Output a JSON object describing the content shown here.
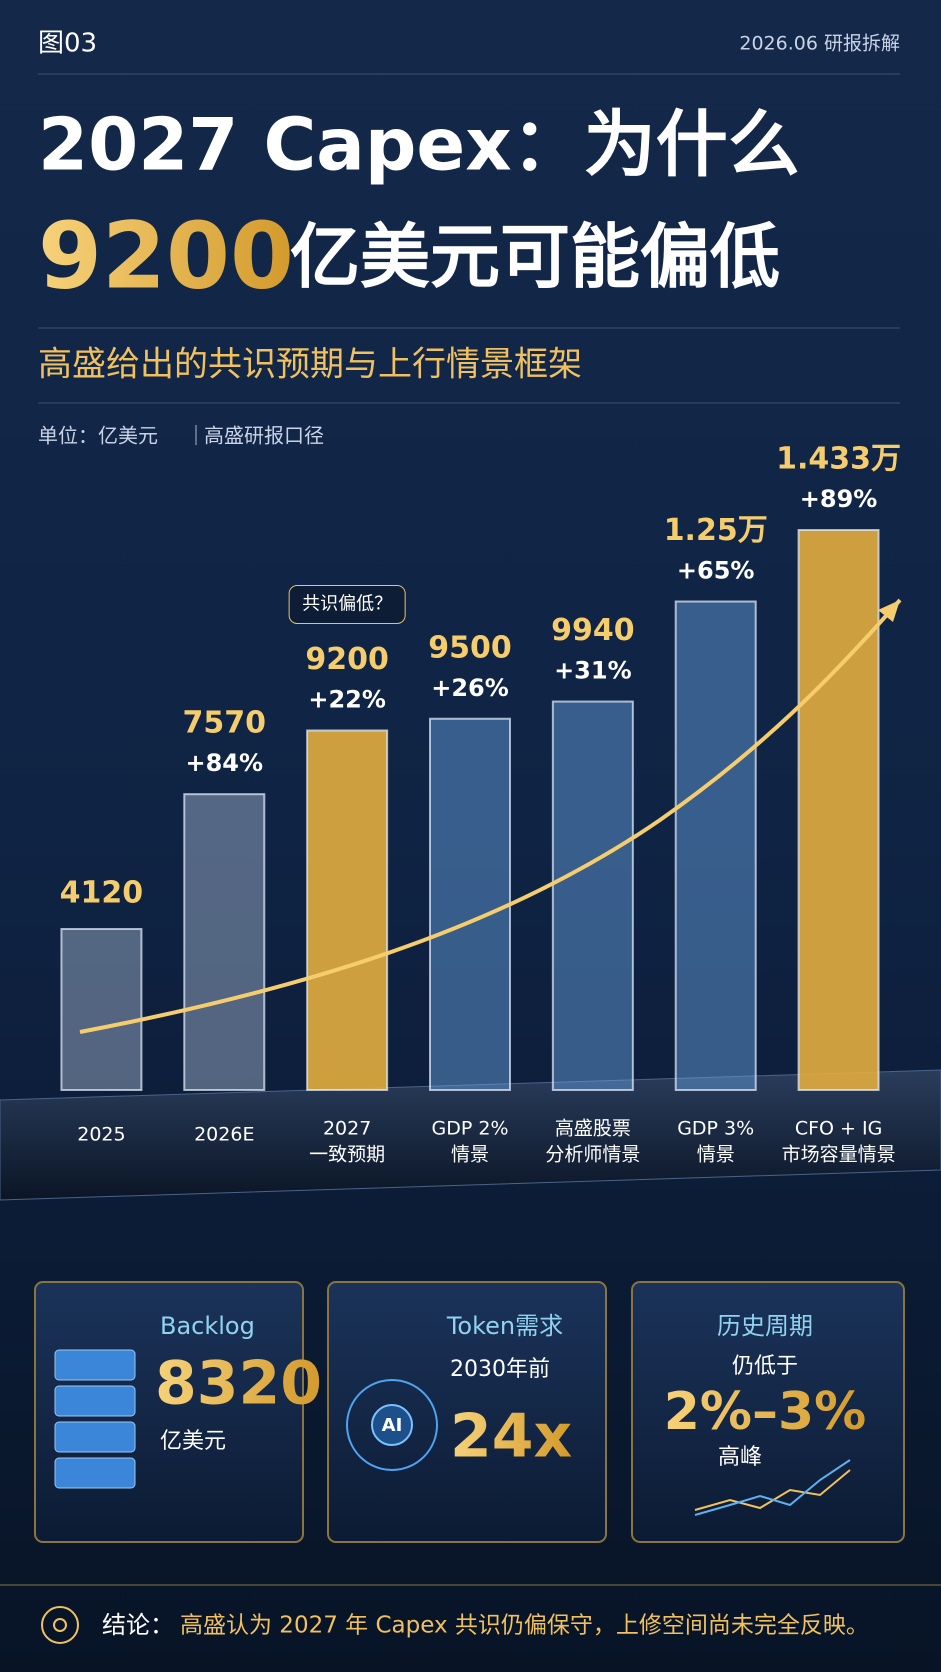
{
  "header": {
    "figure": "图03",
    "date": "2026.06 研报拆解"
  },
  "title": {
    "line1": "2027 Capex：为什么",
    "highlight": "9200",
    "line2": "亿美元可能偏低"
  },
  "subtitle": "高盛给出的共识预期与上行情景框架",
  "unit": "单位：亿美元",
  "source": "高盛研报口径",
  "chart_data": {
    "type": "bar",
    "categories": [
      [
        "2025"
      ],
      [
        "2026E"
      ],
      [
        "2027",
        "一致预期"
      ],
      [
        "GDP 2%",
        "情景"
      ],
      [
        "高盛股票",
        "分析师情景"
      ],
      [
        "GDP 3%",
        "情景"
      ],
      [
        "CFO + IG",
        "市场容量情景"
      ]
    ],
    "values": [
      4120,
      7570,
      9200,
      9500,
      9940,
      12500,
      14330
    ],
    "value_labels": [
      "4120",
      "7570",
      "9200",
      "9500",
      "9940",
      "1.25万",
      "1.433万"
    ],
    "change_labels": [
      null,
      "+84%",
      "+22%",
      "+26%",
      "+31%",
      "+65%",
      "+89%"
    ],
    "colors": [
      "#a9bad3",
      "#a9bad3",
      "#e3ad3e",
      "#6aa6e6",
      "#6aa6e6",
      "#6aa6e6",
      "#e3ad3e"
    ],
    "annotation": "共识偏低？"
  },
  "cards": [
    {
      "title": "Backlog",
      "value": "8320",
      "note": "亿美元"
    },
    {
      "title": "Token需求",
      "note": "2030年前",
      "value": "24x"
    },
    {
      "title": "历史周期",
      "note": "仍低于",
      "value": "2%–3%",
      "foot": "高峰"
    }
  ],
  "conclusion": {
    "label": "结论：",
    "text": "高盛认为 2027 年 Capex 共识仍偏保守，上修空间尚未完全反映。"
  }
}
